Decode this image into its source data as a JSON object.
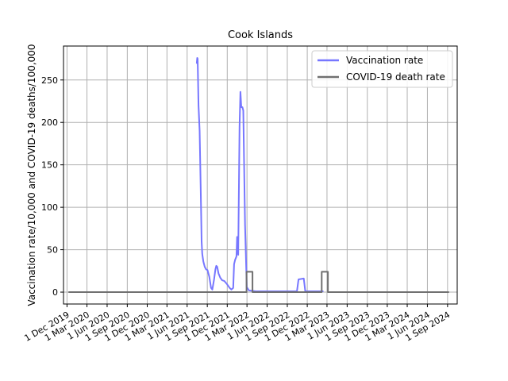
{
  "chart_data": {
    "type": "line",
    "title": "Cook Islands",
    "ylabel": "Vaccination rate/10,000 and COVID-19 deaths/100,000",
    "xlabel": "",
    "xlim": [
      "2019-11-15",
      "2024-10-15"
    ],
    "ylim": [
      -14,
      290
    ],
    "grid": true,
    "legend_position": "upper right",
    "x_ticks": [
      {
        "date": "2019-12-01",
        "label": "1 Dec 2019"
      },
      {
        "date": "2020-03-01",
        "label": "1 Mar 2020"
      },
      {
        "date": "2020-06-01",
        "label": "1 Jun 2020"
      },
      {
        "date": "2020-09-01",
        "label": "1 Sep 2020"
      },
      {
        "date": "2020-12-01",
        "label": "1 Dec 2020"
      },
      {
        "date": "2021-03-01",
        "label": "1 Mar 2021"
      },
      {
        "date": "2021-06-01",
        "label": "1 Jun 2021"
      },
      {
        "date": "2021-09-01",
        "label": "1 Sep 2021"
      },
      {
        "date": "2021-12-01",
        "label": "1 Dec 2021"
      },
      {
        "date": "2022-03-01",
        "label": "1 Mar 2022"
      },
      {
        "date": "2022-06-01",
        "label": "1 Jun 2022"
      },
      {
        "date": "2022-09-01",
        "label": "1 Sep 2022"
      },
      {
        "date": "2022-12-01",
        "label": "1 Dec 2022"
      },
      {
        "date": "2023-03-01",
        "label": "1 Mar 2023"
      },
      {
        "date": "2023-06-01",
        "label": "1 Jun 2023"
      },
      {
        "date": "2023-09-01",
        "label": "1 Sep 2023"
      },
      {
        "date": "2023-12-01",
        "label": "1 Dec 2023"
      },
      {
        "date": "2024-03-01",
        "label": "1 Mar 2024"
      },
      {
        "date": "2024-06-01",
        "label": "1 Jun 2024"
      },
      {
        "date": "2024-09-01",
        "label": "1 Sep 2024"
      }
    ],
    "y_ticks": [
      0,
      50,
      100,
      150,
      200,
      250
    ],
    "series": [
      {
        "name": "Vaccination rate",
        "color": "#7777ff",
        "points": [
          [
            "2021-07-15",
            270
          ],
          [
            "2021-07-17",
            276
          ],
          [
            "2021-07-19",
            275
          ],
          [
            "2021-07-23",
            220
          ],
          [
            "2021-07-28",
            190
          ],
          [
            "2021-08-02",
            120
          ],
          [
            "2021-08-06",
            60
          ],
          [
            "2021-08-09",
            45
          ],
          [
            "2021-08-14",
            36
          ],
          [
            "2021-08-20",
            30
          ],
          [
            "2021-08-26",
            27
          ],
          [
            "2021-09-02",
            26
          ],
          [
            "2021-09-10",
            18
          ],
          [
            "2021-09-18",
            5
          ],
          [
            "2021-09-24",
            3
          ],
          [
            "2021-10-02",
            15
          ],
          [
            "2021-10-08",
            27
          ],
          [
            "2021-10-12",
            31
          ],
          [
            "2021-10-16",
            30
          ],
          [
            "2021-10-22",
            22
          ],
          [
            "2021-10-30",
            17
          ],
          [
            "2021-11-08",
            14
          ],
          [
            "2021-11-18",
            13
          ],
          [
            "2021-12-01",
            9
          ],
          [
            "2021-12-12",
            5
          ],
          [
            "2021-12-20",
            3
          ],
          [
            "2021-12-28",
            5
          ],
          [
            "2022-01-01",
            33
          ],
          [
            "2022-01-06",
            38
          ],
          [
            "2022-01-12",
            42
          ],
          [
            "2022-01-15",
            65
          ],
          [
            "2022-01-20",
            44
          ],
          [
            "2022-01-26",
            195
          ],
          [
            "2022-01-30",
            236
          ],
          [
            "2022-02-03",
            218
          ],
          [
            "2022-02-08",
            218
          ],
          [
            "2022-02-12",
            214
          ],
          [
            "2022-02-20",
            80
          ],
          [
            "2022-02-28",
            6
          ],
          [
            "2022-03-10",
            2
          ],
          [
            "2022-04-10",
            1
          ],
          [
            "2022-06-01",
            1
          ],
          [
            "2022-08-01",
            1
          ],
          [
            "2022-10-01",
            1
          ],
          [
            "2022-10-15",
            1
          ],
          [
            "2022-10-22",
            15
          ],
          [
            "2022-11-15",
            16
          ],
          [
            "2022-11-22",
            1
          ],
          [
            "2022-12-31",
            1
          ],
          [
            "2023-02-01",
            1
          ],
          [
            "2023-02-10",
            1
          ]
        ]
      },
      {
        "name": "COVID-19 death rate",
        "color": "#707070",
        "points": [
          [
            "2019-12-10",
            0
          ],
          [
            "2022-02-27",
            0
          ],
          [
            "2022-02-27",
            24
          ],
          [
            "2022-03-26",
            24
          ],
          [
            "2022-03-26",
            0
          ],
          [
            "2023-02-05",
            0
          ],
          [
            "2023-02-05",
            24
          ],
          [
            "2023-03-05",
            24
          ],
          [
            "2023-03-05",
            0
          ],
          [
            "2024-09-05",
            0
          ]
        ]
      }
    ]
  }
}
